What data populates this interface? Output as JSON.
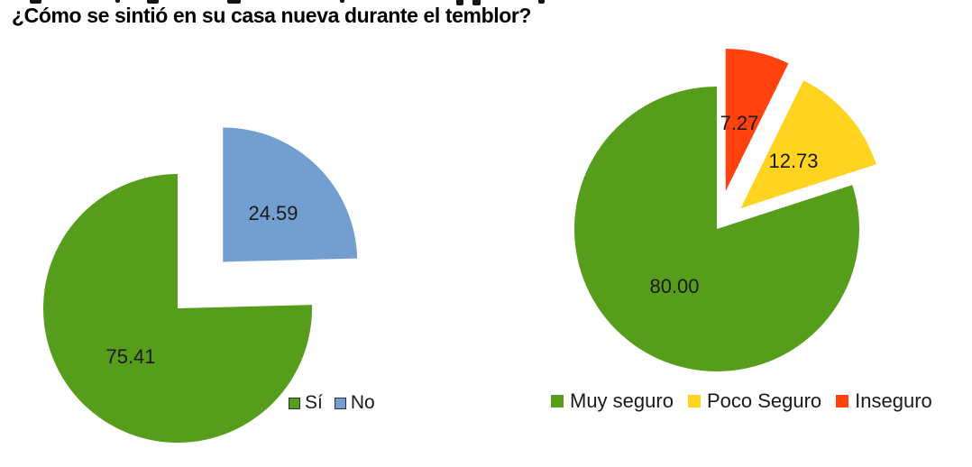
{
  "title": "¿Cómo se sintió en su casa nueva durante el temblor?",
  "chart_data": [
    {
      "type": "pie",
      "title": "",
      "categories": [
        "Sí",
        "No"
      ],
      "values": [
        75.41,
        24.59
      ],
      "data_labels": [
        "75.41",
        "24.59"
      ],
      "colors": [
        "#579D1C",
        "#729FCF"
      ],
      "exploded_slices": [
        "No"
      ],
      "start_angle": "top",
      "direction": "counterclockwise",
      "legend_position": "bottom-right"
    },
    {
      "type": "pie",
      "title": "",
      "categories": [
        "Muy seguro",
        "Poco Seguro",
        "Inseguro"
      ],
      "values": [
        80.0,
        12.73,
        7.27
      ],
      "data_labels": [
        "80.00",
        "12.73",
        "7.27"
      ],
      "colors": [
        "#579D1C",
        "#FFD320",
        "#FF420E"
      ],
      "exploded_slices": [
        "Poco Seguro",
        "Inseguro"
      ],
      "start_angle": "top",
      "direction": "counterclockwise",
      "legend_position": "bottom"
    }
  ]
}
